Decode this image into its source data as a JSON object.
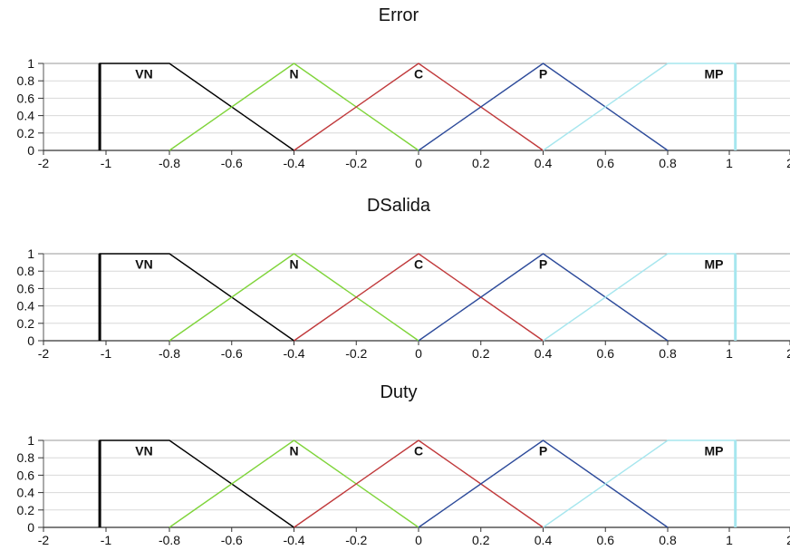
{
  "chart_data": [
    {
      "type": "line",
      "title": "Error",
      "xlim": [
        -2,
        2
      ],
      "ylim": [
        0,
        1
      ],
      "xticks": [
        "-2",
        "-1",
        "-0.8",
        "-0.6",
        "-0.4",
        "-0.2",
        "0",
        "0.2",
        "0.4",
        "0.6",
        "0.8",
        "1",
        "2"
      ],
      "yticks": [
        "0",
        "0.2",
        "0.4",
        "0.6",
        "0.8",
        "1"
      ],
      "grid": true,
      "series": [
        {
          "name": "VN",
          "color": "#000000",
          "points": [
            [
              -1.1,
              0
            ],
            [
              -1.1,
              1
            ],
            [
              -0.8,
              1
            ],
            [
              -0.4,
              0
            ]
          ]
        },
        {
          "name": "N",
          "color": "#7fd43a",
          "points": [
            [
              -0.8,
              0
            ],
            [
              -0.4,
              1
            ],
            [
              0,
              0
            ]
          ]
        },
        {
          "name": "C",
          "color": "#c0393b",
          "points": [
            [
              -0.4,
              0
            ],
            [
              0,
              1
            ],
            [
              0.4,
              0
            ]
          ]
        },
        {
          "name": "P",
          "color": "#2c4a9a",
          "points": [
            [
              0,
              0
            ],
            [
              0.4,
              1
            ],
            [
              0.8,
              0
            ]
          ]
        },
        {
          "name": "MP",
          "color": "#a6e6ee",
          "points": [
            [
              0.4,
              0
            ],
            [
              0.8,
              1
            ],
            [
              1.1,
              1
            ],
            [
              1.1,
              0
            ]
          ]
        }
      ]
    },
    {
      "type": "line",
      "title": "DSalida",
      "xlim": [
        -2,
        2
      ],
      "ylim": [
        0,
        1
      ],
      "xticks": [
        "-2",
        "-1",
        "-0.8",
        "-0.6",
        "-0.4",
        "-0.2",
        "0",
        "0.2",
        "0.4",
        "0.6",
        "0.8",
        "1",
        "2"
      ],
      "yticks": [
        "0",
        "0.2",
        "0.4",
        "0.6",
        "0.8",
        "1"
      ],
      "grid": true,
      "series": [
        {
          "name": "VN",
          "color": "#000000",
          "points": [
            [
              -1.1,
              0
            ],
            [
              -1.1,
              1
            ],
            [
              -0.8,
              1
            ],
            [
              -0.4,
              0
            ]
          ]
        },
        {
          "name": "N",
          "color": "#7fd43a",
          "points": [
            [
              -0.8,
              0
            ],
            [
              -0.4,
              1
            ],
            [
              0,
              0
            ]
          ]
        },
        {
          "name": "C",
          "color": "#c0393b",
          "points": [
            [
              -0.4,
              0
            ],
            [
              0,
              1
            ],
            [
              0.4,
              0
            ]
          ]
        },
        {
          "name": "P",
          "color": "#2c4a9a",
          "points": [
            [
              0,
              0
            ],
            [
              0.4,
              1
            ],
            [
              0.8,
              0
            ]
          ]
        },
        {
          "name": "MP",
          "color": "#a6e6ee",
          "points": [
            [
              0.4,
              0
            ],
            [
              0.8,
              1
            ],
            [
              1.1,
              1
            ],
            [
              1.1,
              0
            ]
          ]
        }
      ]
    },
    {
      "type": "line",
      "title": "Duty",
      "xlim": [
        -2,
        2
      ],
      "ylim": [
        0,
        1
      ],
      "xticks": [
        "-2",
        "-1",
        "-0.8",
        "-0.6",
        "-0.4",
        "-0.2",
        "0",
        "0.2",
        "0.4",
        "0.6",
        "0.8",
        "1",
        "2"
      ],
      "yticks": [
        "0",
        "0.2",
        "0.4",
        "0.6",
        "0.8",
        "1"
      ],
      "grid": true,
      "series": [
        {
          "name": "VN",
          "color": "#000000",
          "points": [
            [
              -1.1,
              0
            ],
            [
              -1.1,
              1
            ],
            [
              -0.8,
              1
            ],
            [
              -0.4,
              0
            ]
          ]
        },
        {
          "name": "N",
          "color": "#7fd43a",
          "points": [
            [
              -0.8,
              0
            ],
            [
              -0.4,
              1
            ],
            [
              0,
              0
            ]
          ]
        },
        {
          "name": "C",
          "color": "#c0393b",
          "points": [
            [
              -0.4,
              0
            ],
            [
              0,
              1
            ],
            [
              0.4,
              0
            ]
          ]
        },
        {
          "name": "P",
          "color": "#2c4a9a",
          "points": [
            [
              0,
              0
            ],
            [
              0.4,
              1
            ],
            [
              0.8,
              0
            ]
          ]
        },
        {
          "name": "MP",
          "color": "#a6e6ee",
          "points": [
            [
              0.4,
              0
            ],
            [
              0.8,
              1
            ],
            [
              1.1,
              1
            ],
            [
              1.1,
              0
            ]
          ]
        }
      ]
    }
  ]
}
